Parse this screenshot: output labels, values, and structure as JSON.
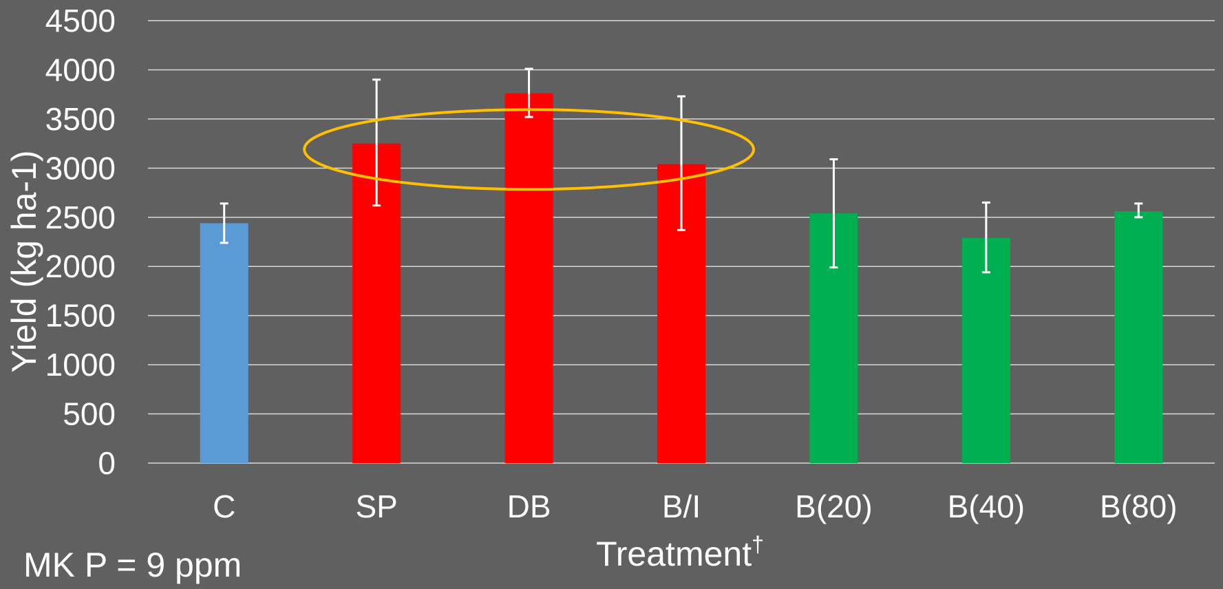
{
  "chart_data": {
    "type": "bar",
    "categories": [
      "C",
      "SP",
      "DB",
      "B/I",
      "B(20)",
      "B(40)",
      "B(80)"
    ],
    "values": [
      2440,
      3250,
      3760,
      3040,
      2540,
      2290,
      2560
    ],
    "error_low": [
      2240,
      2620,
      3520,
      2370,
      1990,
      1940,
      2500
    ],
    "error_high": [
      2640,
      3900,
      4010,
      3730,
      3090,
      2650,
      2640
    ],
    "bar_colors": [
      "#5b9bd5",
      "#ff0000",
      "#ff0000",
      "#ff0000",
      "#00b050",
      "#00b050",
      "#00b050"
    ],
    "xlabel": "Treatment",
    "xlabel_sup": "†",
    "ylabel": "Yield (kg ha-1)",
    "ylim": [
      0,
      4500
    ],
    "yticks": [
      0,
      500,
      1000,
      1500,
      2000,
      2500,
      3000,
      3500,
      4000,
      4500
    ],
    "grid": true,
    "annotation_note": "MK P = 9 ppm",
    "highlight": {
      "shape": "ellipse",
      "color": "#ffc000",
      "around_categories": [
        "SP",
        "DB",
        "B/I"
      ],
      "center_y_value": 3190
    },
    "colors": {
      "background": "#606060",
      "gridline": "#d9d9d9",
      "error_bar": "#ffffff",
      "text": "#ffffff"
    }
  }
}
